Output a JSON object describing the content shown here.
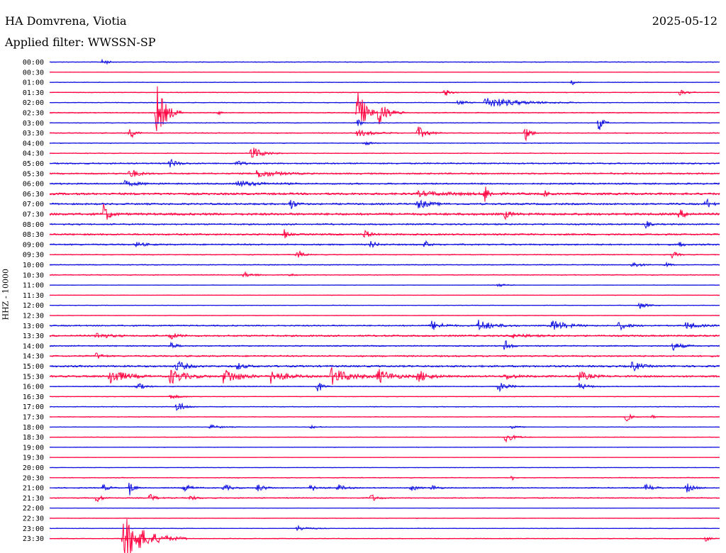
{
  "header": {
    "station": "HA Domvrena, Viotia",
    "date": "2025-05-12",
    "filter": "Applied filter: WWSSN-SP"
  },
  "chart_data": {
    "type": "line",
    "title": "HA Domvrena, Viotia",
    "subtitle": "Applied filter: WWSSN-SP",
    "date": "2025-05-12",
    "ylabel": "HHZ - 10000",
    "xlabel": "",
    "colors": {
      "odd": "#1010e0",
      "even": "#ff0040"
    },
    "rows": [
      {
        "label": "00:00",
        "noise": 0.5,
        "events": [
          [
            0.08,
            6,
            12
          ]
        ]
      },
      {
        "label": "00:30",
        "noise": 0.3,
        "events": []
      },
      {
        "label": "01:00",
        "noise": 0.4,
        "events": [
          [
            0.78,
            4,
            10
          ]
        ]
      },
      {
        "label": "01:30",
        "noise": 0.5,
        "events": [
          [
            0.59,
            7,
            12
          ],
          [
            0.94,
            4,
            20
          ]
        ]
      },
      {
        "label": "02:00",
        "noise": 0.5,
        "events": [
          [
            0.65,
            8,
            90
          ],
          [
            0.61,
            4,
            20
          ]
        ]
      },
      {
        "label": "02:30",
        "noise": 0.6,
        "events": [
          [
            0.16,
            40,
            25
          ],
          [
            0.25,
            4,
            10
          ],
          [
            0.46,
            38,
            20
          ],
          [
            0.49,
            22,
            25
          ]
        ]
      },
      {
        "label": "03:00",
        "noise": 0.5,
        "events": [
          [
            0.82,
            12,
            12
          ],
          [
            0.46,
            6,
            10
          ]
        ]
      },
      {
        "label": "03:30",
        "noise": 0.6,
        "events": [
          [
            0.12,
            10,
            12
          ],
          [
            0.46,
            5,
            40
          ],
          [
            0.55,
            9,
            25
          ],
          [
            0.71,
            12,
            14
          ]
        ]
      },
      {
        "label": "04:00",
        "noise": 0.5,
        "events": [
          [
            0.47,
            3,
            20
          ]
        ]
      },
      {
        "label": "04:30",
        "noise": 0.5,
        "events": [
          [
            0.3,
            11,
            30
          ]
        ]
      },
      {
        "label": "05:00",
        "noise": 0.9,
        "events": [
          [
            0.18,
            6,
            20
          ],
          [
            0.28,
            4,
            20
          ]
        ]
      },
      {
        "label": "05:30",
        "noise": 1.0,
        "events": [
          [
            0.12,
            8,
            20
          ],
          [
            0.31,
            6,
            50
          ]
        ]
      },
      {
        "label": "06:00",
        "noise": 1.0,
        "events": [
          [
            0.11,
            4,
            40
          ],
          [
            0.28,
            4,
            60
          ]
        ]
      },
      {
        "label": "06:30",
        "noise": 1.4,
        "events": [
          [
            0.65,
            14,
            10
          ],
          [
            0.55,
            3,
            100
          ],
          [
            0.74,
            4,
            10
          ]
        ]
      },
      {
        "label": "07:00",
        "noise": 1.2,
        "events": [
          [
            0.36,
            9,
            12
          ],
          [
            0.55,
            7,
            30
          ],
          [
            0.98,
            8,
            12
          ]
        ]
      },
      {
        "label": "07:30",
        "noise": 1.5,
        "events": [
          [
            0.08,
            16,
            15
          ],
          [
            0.68,
            6,
            15
          ],
          [
            0.94,
            6,
            20
          ]
        ]
      },
      {
        "label": "08:00",
        "noise": 1.0,
        "events": [
          [
            0.89,
            6,
            10
          ]
        ]
      },
      {
        "label": "08:30",
        "noise": 1.1,
        "events": [
          [
            0.35,
            7,
            10
          ],
          [
            0.47,
            7,
            15
          ]
        ]
      },
      {
        "label": "09:00",
        "noise": 1.0,
        "events": [
          [
            0.13,
            4,
            20
          ],
          [
            0.48,
            5,
            15
          ],
          [
            0.56,
            6,
            10
          ],
          [
            0.94,
            5,
            10
          ]
        ]
      },
      {
        "label": "09:30",
        "noise": 0.6,
        "events": [
          [
            0.37,
            7,
            14
          ],
          [
            0.93,
            6,
            12
          ]
        ]
      },
      {
        "label": "10:00",
        "noise": 0.6,
        "events": [
          [
            0.87,
            5,
            20
          ],
          [
            0.92,
            4,
            10
          ]
        ]
      },
      {
        "label": "10:30",
        "noise": 0.6,
        "events": [
          [
            0.29,
            4,
            25
          ],
          [
            0.36,
            3,
            10
          ]
        ]
      },
      {
        "label": "11:00",
        "noise": 0.3,
        "events": [
          [
            0.67,
            4,
            15
          ]
        ]
      },
      {
        "label": "11:30",
        "noise": 0.3,
        "events": []
      },
      {
        "label": "12:00",
        "noise": 0.4,
        "events": [
          [
            0.88,
            5,
            20
          ]
        ]
      },
      {
        "label": "12:30",
        "noise": 0.3,
        "events": []
      },
      {
        "label": "13:00",
        "noise": 0.9,
        "events": [
          [
            0.57,
            7,
            30
          ],
          [
            0.64,
            8,
            40
          ],
          [
            0.75,
            8,
            40
          ],
          [
            0.85,
            6,
            25
          ],
          [
            0.95,
            6,
            30
          ]
        ]
      },
      {
        "label": "13:30",
        "noise": 1.1,
        "events": [
          [
            0.07,
            5,
            30
          ],
          [
            0.18,
            5,
            20
          ],
          [
            0.69,
            3,
            40
          ]
        ]
      },
      {
        "label": "14:00",
        "noise": 0.8,
        "events": [
          [
            0.18,
            6,
            15
          ],
          [
            0.68,
            10,
            12
          ],
          [
            0.93,
            6,
            25
          ]
        ]
      },
      {
        "label": "14:30",
        "noise": 1.0,
        "events": [
          [
            0.07,
            5,
            15
          ]
        ]
      },
      {
        "label": "15:00",
        "noise": 1.2,
        "events": [
          [
            0.19,
            8,
            25
          ],
          [
            0.28,
            5,
            20
          ],
          [
            0.87,
            8,
            20
          ]
        ]
      },
      {
        "label": "15:30",
        "noise": 1.2,
        "events": [
          [
            0.09,
            12,
            40
          ],
          [
            0.18,
            11,
            40
          ],
          [
            0.26,
            12,
            40
          ],
          [
            0.33,
            10,
            40
          ],
          [
            0.42,
            12,
            50
          ],
          [
            0.49,
            10,
            40
          ],
          [
            0.55,
            9,
            30
          ],
          [
            0.68,
            4,
            30
          ],
          [
            0.79,
            7,
            30
          ]
        ]
      },
      {
        "label": "16:00",
        "noise": 0.6,
        "events": [
          [
            0.13,
            6,
            20
          ],
          [
            0.4,
            10,
            12
          ],
          [
            0.67,
            7,
            25
          ],
          [
            0.79,
            5,
            25
          ]
        ]
      },
      {
        "label": "16:30",
        "noise": 0.4,
        "events": [
          [
            0.18,
            3,
            30
          ]
        ]
      },
      {
        "label": "17:00",
        "noise": 0.5,
        "events": [
          [
            0.19,
            9,
            20
          ]
        ]
      },
      {
        "label": "17:30",
        "noise": 0.4,
        "events": [
          [
            0.86,
            7,
            15
          ],
          [
            0.9,
            3,
            10
          ]
        ]
      },
      {
        "label": "18:00",
        "noise": 0.4,
        "events": [
          [
            0.24,
            3,
            30
          ],
          [
            0.39,
            2,
            20
          ],
          [
            0.69,
            2,
            20
          ]
        ]
      },
      {
        "label": "18:30",
        "noise": 0.4,
        "events": [
          [
            0.68,
            7,
            25
          ]
        ]
      },
      {
        "label": "19:00",
        "noise": 0.3,
        "events": []
      },
      {
        "label": "19:30",
        "noise": 0.3,
        "events": []
      },
      {
        "label": "20:00",
        "noise": 0.3,
        "events": []
      },
      {
        "label": "20:30",
        "noise": 0.5,
        "events": [
          [
            0.69,
            4,
            8
          ]
        ]
      },
      {
        "label": "21:00",
        "noise": 0.7,
        "events": [
          [
            0.08,
            5,
            15
          ],
          [
            0.12,
            12,
            10
          ],
          [
            0.2,
            6,
            20
          ],
          [
            0.26,
            5,
            20
          ],
          [
            0.31,
            6,
            20
          ],
          [
            0.39,
            5,
            20
          ],
          [
            0.43,
            5,
            20
          ],
          [
            0.54,
            5,
            15
          ],
          [
            0.57,
            5,
            15
          ],
          [
            0.89,
            6,
            20
          ],
          [
            0.95,
            7,
            20
          ]
        ]
      },
      {
        "label": "21:30",
        "noise": 0.7,
        "events": [
          [
            0.07,
            6,
            15
          ],
          [
            0.15,
            6,
            15
          ],
          [
            0.21,
            4,
            15
          ],
          [
            0.48,
            6,
            15
          ]
        ]
      },
      {
        "label": "22:00",
        "noise": 0.3,
        "events": []
      },
      {
        "label": "22:30",
        "noise": 0.3,
        "events": []
      },
      {
        "label": "23:00",
        "noise": 0.4,
        "events": [
          [
            0.37,
            4,
            30
          ]
        ]
      },
      {
        "label": "23:30",
        "noise": 0.5,
        "events": [
          [
            0.11,
            34,
            60
          ],
          [
            0.98,
            5,
            10
          ]
        ]
      }
    ]
  }
}
